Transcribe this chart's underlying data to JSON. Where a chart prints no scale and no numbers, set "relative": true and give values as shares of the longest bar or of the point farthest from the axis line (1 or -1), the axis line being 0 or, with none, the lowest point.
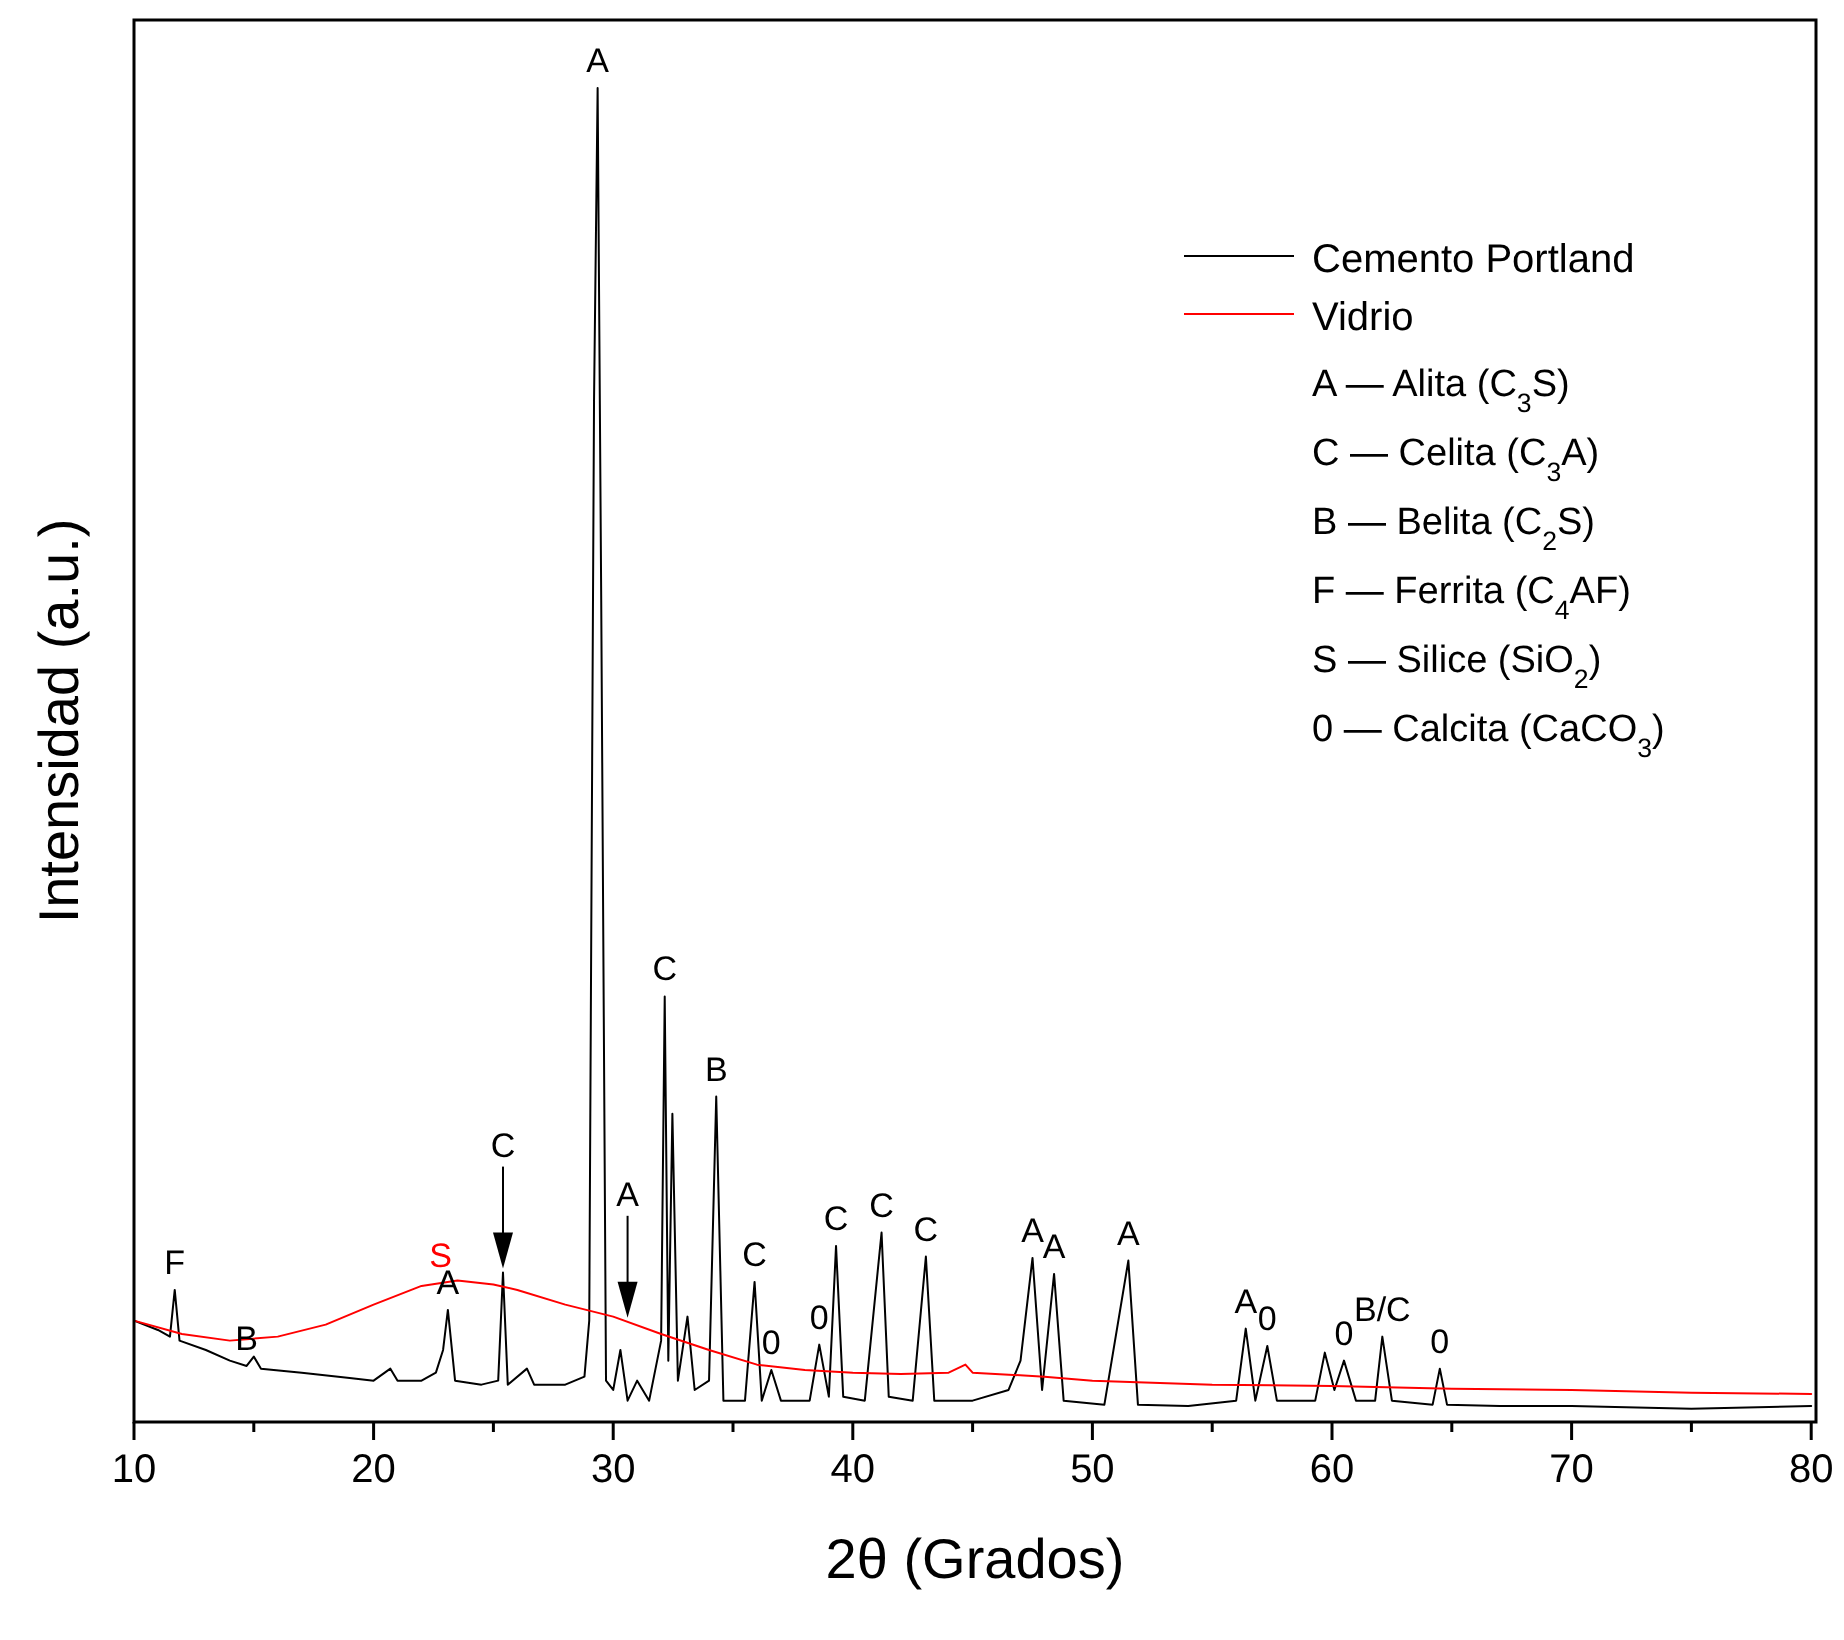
{
  "chart_data": {
    "type": "line",
    "relative": true,
    "xlabel": "2θ (Grados)",
    "ylabel": "Intensidad (a.u.)",
    "xlim": [
      10,
      80.2
    ],
    "xticks": [
      10,
      {
        "value": 15,
        "label": null
      },
      20,
      {
        "value": 25,
        "label": null
      },
      30,
      {
        "value": 35,
        "label": null
      },
      40,
      {
        "value": 45,
        "label": null
      },
      50,
      {
        "value": 55,
        "label": null
      },
      60,
      {
        "value": 65,
        "label": null
      },
      70,
      {
        "value": 75,
        "label": null
      },
      80
    ],
    "grid": false,
    "legend": "top right",
    "marker": "none",
    "line_style": "solid",
    "series": [
      {
        "name": "Cemento Portland",
        "color": "#000000",
        "x": [
          10,
          11,
          11.5,
          11.7,
          11.9,
          13,
          14,
          14.7,
          15,
          15.3,
          17,
          19,
          20,
          20.7,
          21,
          22,
          22.6,
          22.9,
          23.1,
          23.4,
          24.5,
          25.2,
          25.4,
          25.6,
          26.4,
          26.7,
          28,
          28.8,
          29.0,
          29.2,
          29.35,
          29.5,
          29.7,
          30.0,
          30.3,
          30.6,
          31,
          31.5,
          32.0,
          32.15,
          32.3,
          32.47,
          32.7,
          33.1,
          33.4,
          34.0,
          34.3,
          34.6,
          35.5,
          35.9,
          36.2,
          36.6,
          37,
          38.2,
          38.6,
          39.0,
          39.3,
          39.6,
          40.5,
          41.2,
          41.5,
          42.5,
          43.05,
          43.4,
          45,
          46.5,
          47.0,
          47.5,
          47.9,
          48.4,
          48.8,
          50.5,
          51.5,
          51.9,
          54,
          56.0,
          56.4,
          56.8,
          57.3,
          57.7,
          59.3,
          59.7,
          60.1,
          60.5,
          61.0,
          61.8,
          62.1,
          62.5,
          64.2,
          64.5,
          64.8,
          67,
          70,
          75,
          80
        ],
        "values": [
          0.076,
          0.069,
          0.064,
          0.099,
          0.061,
          0.054,
          0.046,
          0.042,
          0.049,
          0.04,
          0.037,
          0.033,
          0.031,
          0.04,
          0.031,
          0.031,
          0.037,
          0.054,
          0.084,
          0.031,
          0.028,
          0.031,
          0.112,
          0.028,
          0.04,
          0.028,
          0.028,
          0.034,
          0.076,
          0.766,
          1,
          0.616,
          0.031,
          0.024,
          0.054,
          0.016,
          0.031,
          0.016,
          0.061,
          0.319,
          0.046,
          0.231,
          0.031,
          0.079,
          0.024,
          0.031,
          0.244,
          0.016,
          0.016,
          0.105,
          0.016,
          0.039,
          0.016,
          0.016,
          0.058,
          0.019,
          0.132,
          0.019,
          0.016,
          0.142,
          0.019,
          0.016,
          0.124,
          0.016,
          0.016,
          0.024,
          0.046,
          0.123,
          0.024,
          0.111,
          0.016,
          0.013,
          0.121,
          0.013,
          0.012,
          0.016,
          0.07,
          0.016,
          0.057,
          0.016,
          0.016,
          0.052,
          0.024,
          0.046,
          0.016,
          0.016,
          0.064,
          0.016,
          0.013,
          0.04,
          0.013,
          0.012,
          0.012,
          0.01,
          0.012
        ]
      },
      {
        "name": "Vidrio",
        "color": "#ff0000",
        "x": [
          10,
          12,
          14,
          16,
          18,
          20,
          22,
          23.5,
          25,
          26,
          28,
          30,
          32,
          34,
          36,
          38,
          40,
          42,
          44,
          44.7,
          45,
          48,
          50,
          55,
          60,
          65,
          70,
          75,
          80
        ],
        "values": [
          0.076,
          0.066,
          0.061,
          0.064,
          0.073,
          0.088,
          0.102,
          0.106,
          0.103,
          0.099,
          0.088,
          0.079,
          0.066,
          0.054,
          0.043,
          0.039,
          0.037,
          0.036,
          0.037,
          0.043,
          0.037,
          0.034,
          0.031,
          0.028,
          0.027,
          0.025,
          0.024,
          0.022,
          0.021
        ]
      }
    ],
    "annotations": [
      {
        "text": "F",
        "x": 11.7,
        "y": 0.099
      },
      {
        "text": "B",
        "x": 14.7,
        "y": 0.042
      },
      {
        "text": "A",
        "x": 23.1,
        "y": 0.084
      },
      {
        "text": "S",
        "x": 22.8,
        "y": 0.104
      },
      {
        "text": "C",
        "x": 25.4
      },
      {
        "text": "A",
        "x": 29.35,
        "y": 1
      },
      {
        "text": "A",
        "x": 30.6
      },
      {
        "text": "C",
        "x": 32.15,
        "y": 0.319
      },
      {
        "text": "B",
        "x": 34.3,
        "y": 0.244
      },
      {
        "text": "C",
        "x": 35.9,
        "y": 0.105
      },
      {
        "text": "0",
        "x": 36.6,
        "y": 0.039
      },
      {
        "text": "0",
        "x": 38.6,
        "y": 0.058
      },
      {
        "text": "C",
        "x": 39.3,
        "y": 0.132
      },
      {
        "text": "C",
        "x": 41.2,
        "y": 0.142
      },
      {
        "text": "C",
        "x": 43.05,
        "y": 0.124
      },
      {
        "text": "A",
        "x": 47.5,
        "y": 0.123
      },
      {
        "text": "A",
        "x": 48.4,
        "y": 0.111
      },
      {
        "text": "A",
        "x": 51.5,
        "y": 0.121
      },
      {
        "text": "A",
        "x": 56.4,
        "y": 0.07
      },
      {
        "text": "0",
        "x": 57.3,
        "y": 0.057
      },
      {
        "text": "0",
        "x": 60.5,
        "y": 0.046
      },
      {
        "text": "B/C",
        "x": 62.1,
        "y": 0.064
      },
      {
        "text": "0",
        "x": 64.5,
        "y": 0.04
      },
      "A — Alita (C$_{3}$S)",
      "C — Celita (C$_{3}$A)",
      "B — Belita (C$_{2}$S)",
      "F — Ferrita (C$_{4}$AF)",
      "S — Silice (SiO$_{2}$)",
      "0 — Calcita (CaCO$_{3}$)"
    ]
  }
}
